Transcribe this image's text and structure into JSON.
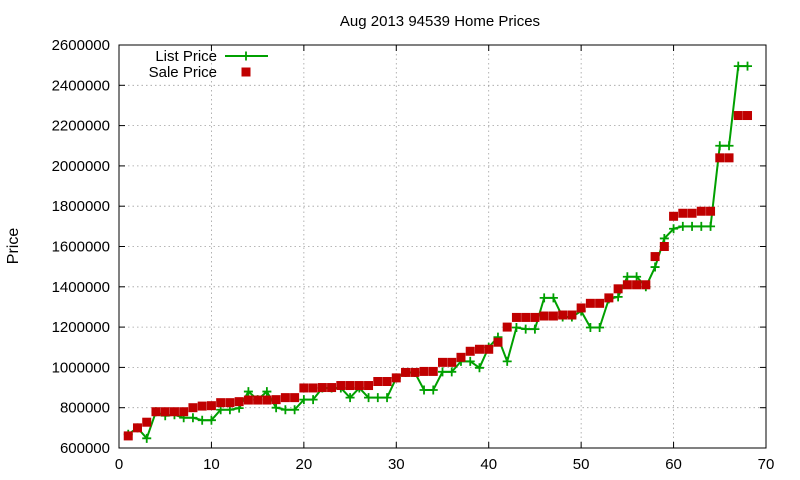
{
  "chart_data": {
    "type": "line",
    "title": "Aug 2013 94539 Home Prices",
    "ylabel": "Price",
    "xlabel": "",
    "xlim": [
      0,
      70
    ],
    "ylim": [
      600000,
      2600000
    ],
    "x_ticks": [
      0,
      10,
      20,
      30,
      40,
      50,
      60,
      70
    ],
    "y_ticks": [
      600000,
      800000,
      1000000,
      1200000,
      1400000,
      1600000,
      1800000,
      2000000,
      2200000,
      2400000,
      2600000
    ],
    "grid": true,
    "legend_position": "top-left",
    "series": [
      {
        "name": "List Price",
        "style": "line+cross",
        "color": "#00a000",
        "points": [
          [
            1,
            668000
          ],
          [
            2,
            700000
          ],
          [
            3,
            648000
          ],
          [
            4,
            780000
          ],
          [
            5,
            760000
          ],
          [
            6,
            765000
          ],
          [
            7,
            750000
          ],
          [
            8,
            750000
          ],
          [
            9,
            738000
          ],
          [
            10,
            738000
          ],
          [
            11,
            790000
          ],
          [
            12,
            790000
          ],
          [
            13,
            798000
          ],
          [
            14,
            880000
          ],
          [
            15,
            840000
          ],
          [
            16,
            880000
          ],
          [
            17,
            800000
          ],
          [
            18,
            790000
          ],
          [
            19,
            790000
          ],
          [
            20,
            840000
          ],
          [
            21,
            840000
          ],
          [
            22,
            898000
          ],
          [
            23,
            898000
          ],
          [
            24,
            898000
          ],
          [
            25,
            850000
          ],
          [
            26,
            898000
          ],
          [
            27,
            850000
          ],
          [
            28,
            850000
          ],
          [
            29,
            850000
          ],
          [
            30,
            948000
          ],
          [
            31,
            975000
          ],
          [
            32,
            975000
          ],
          [
            33,
            888000
          ],
          [
            34,
            888000
          ],
          [
            35,
            978000
          ],
          [
            36,
            978000
          ],
          [
            37,
            1030000
          ],
          [
            38,
            1030000
          ],
          [
            39,
            998000
          ],
          [
            40,
            1100000
          ],
          [
            41,
            1150000
          ],
          [
            42,
            1030000
          ],
          [
            43,
            1198000
          ],
          [
            44,
            1190000
          ],
          [
            45,
            1190000
          ],
          [
            46,
            1345000
          ],
          [
            47,
            1345000
          ],
          [
            48,
            1250000
          ],
          [
            49,
            1250000
          ],
          [
            50,
            1280000
          ],
          [
            51,
            1198000
          ],
          [
            52,
            1198000
          ],
          [
            53,
            1340000
          ],
          [
            54,
            1350000
          ],
          [
            55,
            1450000
          ],
          [
            56,
            1450000
          ],
          [
            57,
            1400000
          ],
          [
            58,
            1498000
          ],
          [
            59,
            1640000
          ],
          [
            60,
            1688000
          ],
          [
            61,
            1700000
          ],
          [
            62,
            1700000
          ],
          [
            63,
            1700000
          ],
          [
            64,
            1700000
          ],
          [
            65,
            2100000
          ],
          [
            66,
            2100000
          ],
          [
            67,
            2495000
          ],
          [
            68,
            2495000
          ]
        ]
      },
      {
        "name": "Sale Price",
        "style": "square",
        "color": "#c00000",
        "points": [
          [
            1,
            660000
          ],
          [
            2,
            700000
          ],
          [
            3,
            728000
          ],
          [
            4,
            780000
          ],
          [
            5,
            780000
          ],
          [
            6,
            780000
          ],
          [
            7,
            780000
          ],
          [
            8,
            800000
          ],
          [
            9,
            808000
          ],
          [
            10,
            810000
          ],
          [
            11,
            825000
          ],
          [
            12,
            825000
          ],
          [
            13,
            830000
          ],
          [
            14,
            838000
          ],
          [
            15,
            838000
          ],
          [
            16,
            838000
          ],
          [
            17,
            840000
          ],
          [
            18,
            850000
          ],
          [
            19,
            850000
          ],
          [
            20,
            898000
          ],
          [
            21,
            898000
          ],
          [
            22,
            900000
          ],
          [
            23,
            900000
          ],
          [
            24,
            910000
          ],
          [
            25,
            910000
          ],
          [
            26,
            910000
          ],
          [
            27,
            910000
          ],
          [
            28,
            930000
          ],
          [
            29,
            930000
          ],
          [
            30,
            948000
          ],
          [
            31,
            975000
          ],
          [
            32,
            975000
          ],
          [
            33,
            980000
          ],
          [
            34,
            980000
          ],
          [
            35,
            1025000
          ],
          [
            36,
            1025000
          ],
          [
            37,
            1050000
          ],
          [
            38,
            1080000
          ],
          [
            39,
            1090000
          ],
          [
            40,
            1090000
          ],
          [
            41,
            1125000
          ],
          [
            42,
            1200000
          ],
          [
            43,
            1248000
          ],
          [
            44,
            1248000
          ],
          [
            45,
            1248000
          ],
          [
            46,
            1255000
          ],
          [
            47,
            1255000
          ],
          [
            48,
            1260000
          ],
          [
            49,
            1260000
          ],
          [
            50,
            1295000
          ],
          [
            51,
            1318000
          ],
          [
            52,
            1318000
          ],
          [
            53,
            1345000
          ],
          [
            54,
            1390000
          ],
          [
            55,
            1410000
          ],
          [
            56,
            1410000
          ],
          [
            57,
            1410000
          ],
          [
            58,
            1550000
          ],
          [
            59,
            1600000
          ],
          [
            60,
            1750000
          ],
          [
            61,
            1765000
          ],
          [
            62,
            1765000
          ],
          [
            63,
            1775000
          ],
          [
            64,
            1775000
          ],
          [
            65,
            2040000
          ],
          [
            66,
            2040000
          ],
          [
            67,
            2250000
          ],
          [
            68,
            2250000
          ]
        ]
      }
    ]
  }
}
